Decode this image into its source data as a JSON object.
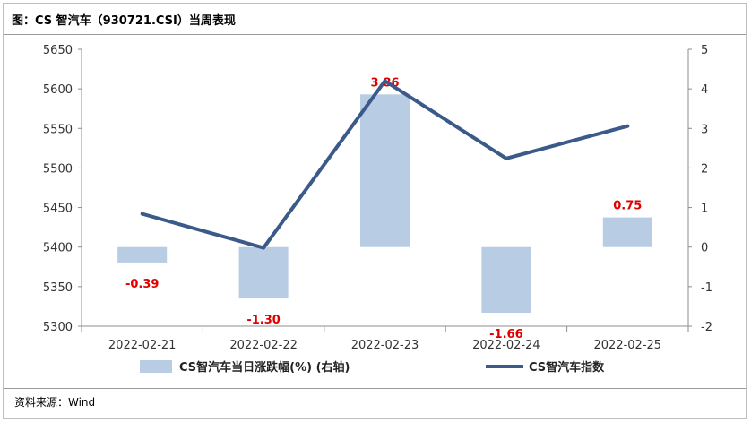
{
  "title": "图：CS 智汽车（930721.CSI）当周表现",
  "source": "资料来源：Wind",
  "chart_data": {
    "type": "bar+line",
    "categories": [
      "2022-02-21",
      "2022-02-22",
      "2022-02-23",
      "2022-02-24",
      "2022-02-25"
    ],
    "series": [
      {
        "name": "CS智汽车当日涨跌幅(%) (右轴)",
        "type": "bar",
        "axis": "right",
        "values": [
          -0.39,
          -1.3,
          3.86,
          -1.66,
          0.75
        ],
        "labels": [
          "-0.39",
          "-1.30",
          "3.86",
          "-1.66",
          "0.75"
        ],
        "color": "#b8cce4"
      },
      {
        "name": "CS智汽车指数",
        "type": "line",
        "axis": "left",
        "values": [
          5442,
          5399,
          5610,
          5512,
          5553
        ],
        "color": "#3a5a8a"
      }
    ],
    "left_axis": {
      "ylim": [
        5300,
        5650
      ],
      "ticks": [
        "5650",
        "5600",
        "5550",
        "5500",
        "5450",
        "5400",
        "5350",
        "5300"
      ]
    },
    "right_axis": {
      "ylim": [
        -2,
        5
      ],
      "ticks": [
        "5",
        "4",
        "3",
        "2",
        "1",
        "0",
        "-1",
        "-2"
      ]
    },
    "grid": false,
    "legend_position": "bottom",
    "label_color": "#e00000"
  }
}
